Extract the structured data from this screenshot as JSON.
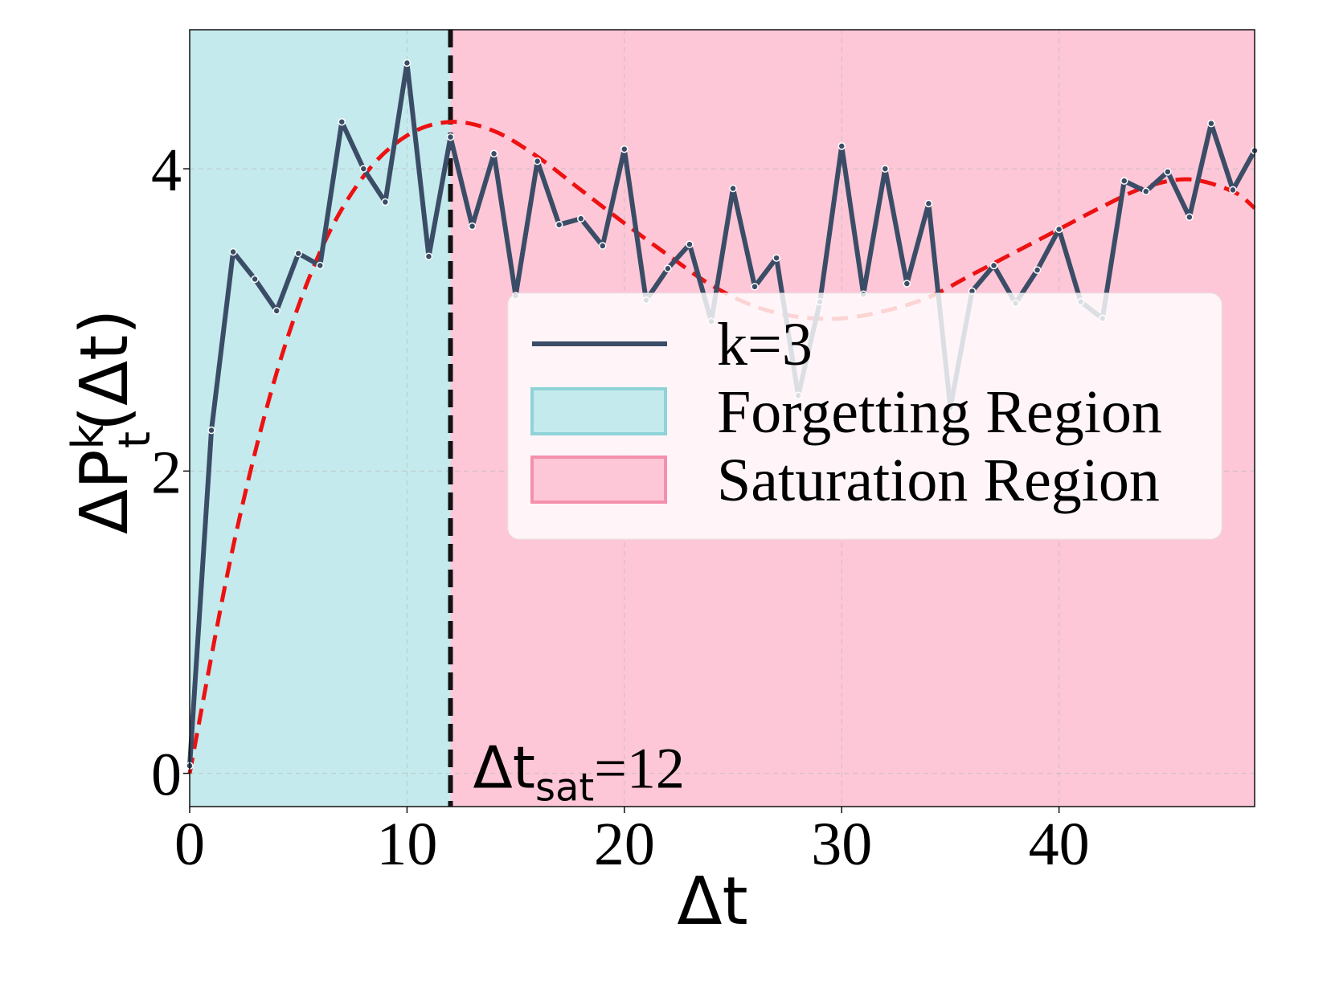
{
  "chart_data": {
    "type": "line",
    "xlabel": "Δt",
    "ylabel": {
      "main": "ΔP",
      "sup": "k",
      "sub": "t",
      "tail": "(Δt)"
    },
    "xlim": [
      0,
      49
    ],
    "ylim": [
      -0.22,
      4.92
    ],
    "xticks": [
      0,
      10,
      20,
      30,
      40
    ],
    "yticks": [
      0,
      2,
      4
    ],
    "grid": true,
    "series": [
      {
        "name": "k=3",
        "color": "#3b4d66",
        "x": [
          0,
          1,
          2,
          3,
          4,
          5,
          6,
          7,
          8,
          9,
          10,
          11,
          12,
          13,
          14,
          15,
          16,
          17,
          18,
          19,
          20,
          21,
          22,
          23,
          24,
          25,
          26,
          27,
          28,
          29,
          30,
          31,
          32,
          33,
          34,
          35,
          36,
          37,
          38,
          39,
          40,
          41,
          42,
          43,
          44,
          45,
          46,
          47,
          48,
          49
        ],
        "values": [
          0.05,
          2.27,
          3.45,
          3.27,
          3.06,
          3.44,
          3.36,
          4.31,
          4.0,
          3.78,
          4.7,
          3.42,
          4.21,
          3.62,
          4.1,
          3.16,
          4.05,
          3.63,
          3.67,
          3.49,
          4.13,
          3.13,
          3.34,
          3.5,
          2.99,
          3.87,
          3.22,
          3.41,
          2.5,
          3.12,
          4.15,
          3.17,
          4.0,
          3.24,
          3.77,
          2.42,
          3.19,
          3.36,
          3.11,
          3.33,
          3.6,
          3.12,
          3.01,
          3.92,
          3.85,
          3.98,
          3.68,
          4.3,
          3.86,
          4.12
        ]
      }
    ],
    "fit_curve": {
      "style": "dashed",
      "color": "#ee1111",
      "samples_x": [
        0,
        2,
        4,
        6,
        8,
        10,
        12,
        14,
        16,
        18,
        20,
        22,
        24,
        26,
        28,
        30,
        32,
        34,
        36,
        38,
        40,
        42,
        44,
        46,
        48,
        49
      ],
      "samples_y": [
        0.0,
        1.5,
        2.65,
        3.45,
        3.95,
        4.22,
        4.31,
        4.25,
        4.08,
        3.86,
        3.64,
        3.43,
        3.23,
        3.09,
        3.02,
        3.01,
        3.06,
        3.15,
        3.3,
        3.45,
        3.6,
        3.75,
        3.88,
        3.93,
        3.85,
        3.74
      ]
    },
    "regions": [
      {
        "name": "Forgetting Region",
        "x_range": [
          0,
          12
        ],
        "color": "#c4eaed",
        "edge": "#8fd3d8"
      },
      {
        "name": "Saturation Region",
        "x_range": [
          12,
          49
        ],
        "color": "#fdc7d8",
        "edge": "#f590ac"
      }
    ],
    "vline": {
      "x": 12,
      "style": "dashed",
      "color": "#111111",
      "label": {
        "main": "Δt",
        "sub": "sat",
        "tail": "=12"
      }
    },
    "legend": {
      "position": "center-right",
      "entries": [
        "k=3",
        "Forgetting Region",
        "Saturation Region"
      ]
    }
  }
}
